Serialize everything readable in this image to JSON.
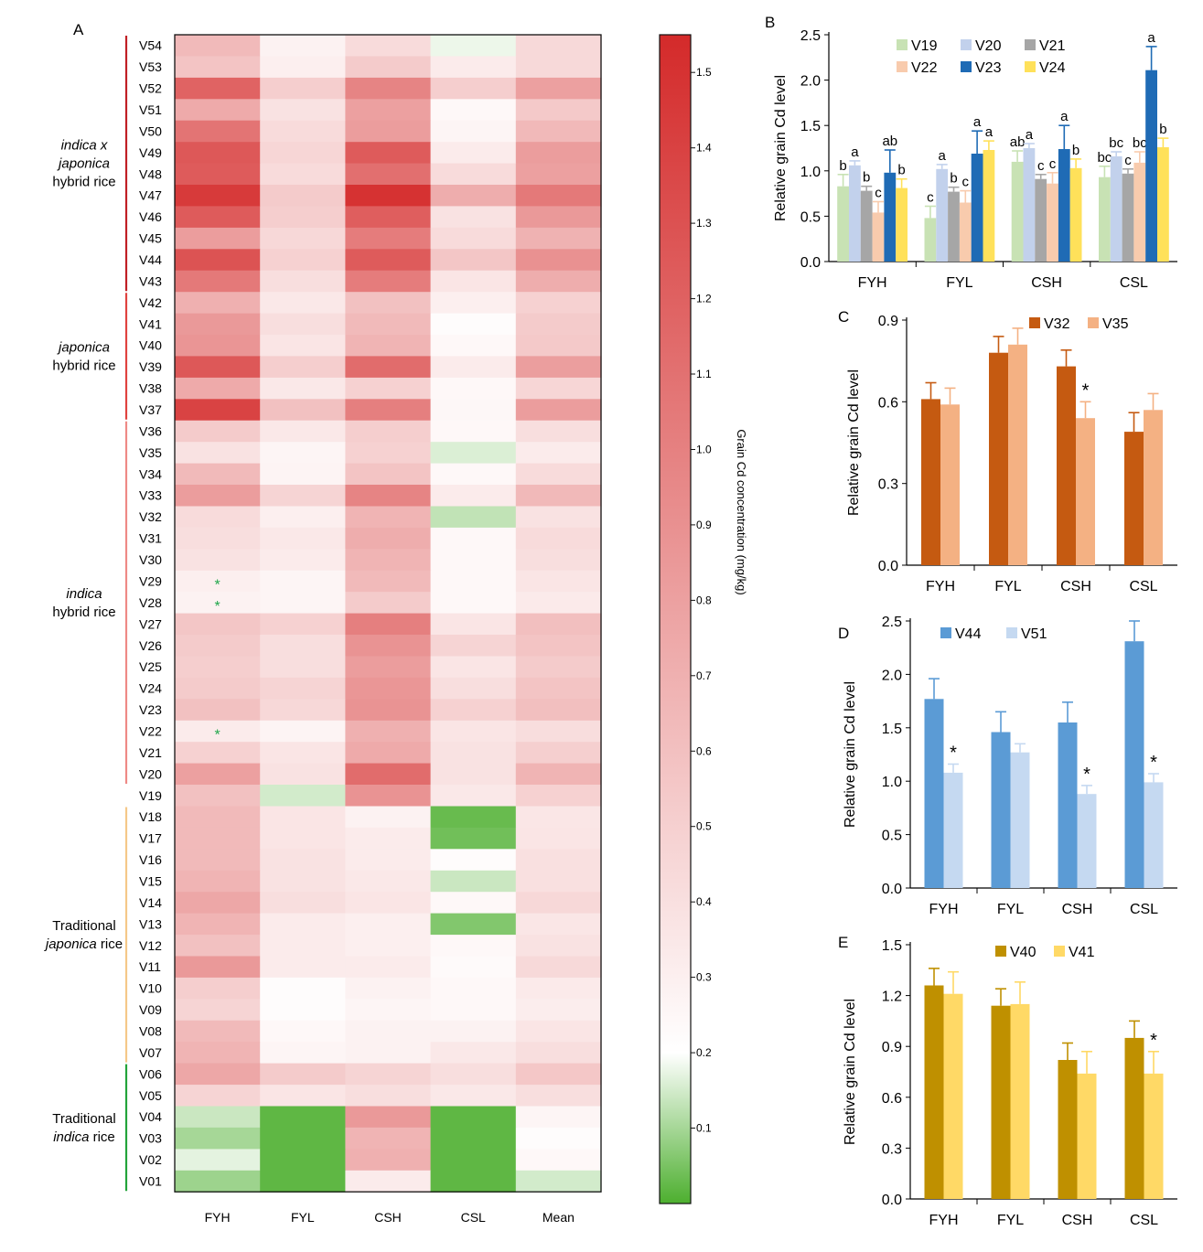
{
  "chart_data": [
    {
      "type": "heatmap",
      "panel_label": "A",
      "columns": [
        "FYH",
        "FYL",
        "CSH",
        "CSL",
        "Mean"
      ],
      "rows": [
        "V54",
        "V53",
        "V52",
        "V51",
        "V50",
        "V49",
        "V48",
        "V47",
        "V46",
        "V45",
        "V44",
        "V43",
        "V42",
        "V41",
        "V40",
        "V39",
        "V38",
        "V37",
        "V36",
        "V35",
        "V34",
        "V33",
        "V32",
        "V31",
        "V30",
        "V29",
        "V28",
        "V27",
        "V26",
        "V25",
        "V24",
        "V23",
        "V22",
        "V21",
        "V20",
        "V19",
        "V18",
        "V17",
        "V16",
        "V15",
        "V14",
        "V13",
        "V12",
        "V11",
        "V10",
        "V09",
        "V08",
        "V07",
        "V06",
        "V05",
        "V04",
        "V03",
        "V02",
        "V01"
      ],
      "values": [
        [
          0.62,
          0.28,
          0.42,
          0.18,
          0.43
        ],
        [
          0.56,
          0.3,
          0.52,
          0.32,
          0.43
        ],
        [
          1.15,
          0.5,
          0.95,
          0.5,
          0.78
        ],
        [
          0.72,
          0.38,
          0.78,
          0.24,
          0.53
        ],
        [
          1.05,
          0.42,
          0.8,
          0.26,
          0.63
        ],
        [
          1.22,
          0.45,
          1.2,
          0.32,
          0.8
        ],
        [
          1.2,
          0.42,
          1.08,
          0.42,
          0.78
        ],
        [
          1.4,
          0.52,
          1.45,
          0.7,
          1.02
        ],
        [
          1.2,
          0.5,
          1.18,
          0.38,
          0.82
        ],
        [
          0.8,
          0.44,
          1.0,
          0.42,
          0.67
        ],
        [
          1.25,
          0.48,
          1.2,
          0.55,
          0.87
        ],
        [
          1.02,
          0.4,
          1.0,
          0.36,
          0.7
        ],
        [
          0.68,
          0.34,
          0.58,
          0.3,
          0.48
        ],
        [
          0.82,
          0.4,
          0.62,
          0.22,
          0.52
        ],
        [
          0.85,
          0.36,
          0.66,
          0.24,
          0.53
        ],
        [
          1.22,
          0.5,
          1.1,
          0.32,
          0.79
        ],
        [
          0.72,
          0.34,
          0.48,
          0.24,
          0.45
        ],
        [
          1.35,
          0.58,
          0.98,
          0.25,
          0.8
        ],
        [
          0.52,
          0.34,
          0.5,
          0.24,
          0.4
        ],
        [
          0.38,
          0.26,
          0.48,
          0.16,
          0.32
        ],
        [
          0.62,
          0.27,
          0.56,
          0.24,
          0.42
        ],
        [
          0.8,
          0.46,
          0.95,
          0.32,
          0.63
        ],
        [
          0.42,
          0.3,
          0.66,
          0.13,
          0.38
        ],
        [
          0.4,
          0.34,
          0.7,
          0.24,
          0.42
        ],
        [
          0.38,
          0.32,
          0.66,
          0.24,
          0.4
        ],
        [
          0.3,
          0.26,
          0.62,
          0.24,
          0.36
        ],
        [
          0.28,
          0.26,
          0.52,
          0.24,
          0.33
        ],
        [
          0.55,
          0.48,
          0.98,
          0.36,
          0.59
        ],
        [
          0.52,
          0.4,
          0.86,
          0.46,
          0.56
        ],
        [
          0.5,
          0.4,
          0.8,
          0.36,
          0.52
        ],
        [
          0.52,
          0.46,
          0.84,
          0.4,
          0.56
        ],
        [
          0.58,
          0.44,
          0.86,
          0.48,
          0.59
        ],
        [
          0.32,
          0.27,
          0.68,
          0.36,
          0.41
        ],
        [
          0.48,
          0.36,
          0.72,
          0.38,
          0.49
        ],
        [
          0.78,
          0.38,
          1.1,
          0.38,
          0.66
        ],
        [
          0.58,
          0.15,
          0.86,
          0.34,
          0.48
        ],
        [
          0.62,
          0.36,
          0.28,
          0.03,
          0.35
        ],
        [
          0.62,
          0.36,
          0.32,
          0.04,
          0.36
        ],
        [
          0.62,
          0.38,
          0.32,
          0.22,
          0.39
        ],
        [
          0.66,
          0.38,
          0.34,
          0.14,
          0.39
        ],
        [
          0.74,
          0.4,
          0.36,
          0.24,
          0.44
        ],
        [
          0.66,
          0.32,
          0.3,
          0.06,
          0.35
        ],
        [
          0.58,
          0.32,
          0.3,
          0.24,
          0.38
        ],
        [
          0.82,
          0.32,
          0.32,
          0.23,
          0.43
        ],
        [
          0.5,
          0.22,
          0.28,
          0.24,
          0.33
        ],
        [
          0.46,
          0.22,
          0.26,
          0.24,
          0.31
        ],
        [
          0.62,
          0.24,
          0.28,
          0.28,
          0.36
        ],
        [
          0.66,
          0.26,
          0.28,
          0.34,
          0.4
        ],
        [
          0.74,
          0.52,
          0.46,
          0.4,
          0.54
        ],
        [
          0.46,
          0.36,
          0.4,
          0.34,
          0.4
        ],
        [
          0.14,
          0.02,
          0.82,
          0.02,
          0.26
        ],
        [
          0.1,
          0.02,
          0.66,
          0.02,
          0.22
        ],
        [
          0.17,
          0.02,
          0.68,
          0.02,
          0.24
        ],
        [
          0.09,
          0.02,
          0.32,
          0.02,
          0.15
        ]
      ],
      "colorbar": {
        "label": "Grain Cd concentration (mg/kg)",
        "ticks": [
          "0.1",
          "0.2",
          "0.3",
          "0.4",
          "0.5",
          "0.6",
          "0.7",
          "0.8",
          "0.9",
          "1.0",
          "1.1",
          "1.2",
          "1.3",
          "1.4",
          "1.5"
        ],
        "range": [
          0,
          1.55
        ]
      },
      "colors": {
        "low": "#4daf2f",
        "mid": "#ffffff",
        "high": "#d42a2a"
      },
      "groups": [
        {
          "label_lines": [
            "indica x",
            "japonica",
            "hybrid rice"
          ],
          "italic_lines": [
            true,
            true,
            false
          ],
          "first": "V54",
          "last": "V43",
          "color": "#c11f25"
        },
        {
          "label_lines": [
            "japonica",
            "hybrid rice"
          ],
          "italic_lines": [
            true,
            false
          ],
          "first": "V42",
          "last": "V37",
          "color": "#e0423f"
        },
        {
          "label_lines": [
            "indica",
            "hybrid rice"
          ],
          "italic_lines": [
            true,
            false
          ],
          "first": "V36",
          "last": "V20",
          "color": "#ee8a86"
        },
        {
          "label_lines": [
            "Traditional",
            "japonica rice"
          ],
          "italic_lines": [
            false,
            false
          ],
          "first": "V18",
          "last": "V07",
          "color": "#f5c889"
        },
        {
          "label_lines": [
            "Traditional",
            "indica rice"
          ],
          "italic_lines": [
            false,
            false
          ],
          "first": "V06",
          "last": "V01",
          "color": "#23a43a"
        }
      ],
      "group_label_italic_words": {
        "Traditional japonica rice": "japonica",
        "Traditional indica rice": "indica"
      },
      "asterisks": [
        {
          "row": "V29",
          "column": "FYH",
          "text": "*"
        },
        {
          "row": "V28",
          "column": "FYH",
          "text": "*"
        },
        {
          "row": "V22",
          "column": "FYH",
          "text": "*"
        }
      ],
      "asterisk_color": "#1fa64a"
    },
    {
      "type": "bar",
      "panel_label": "B",
      "ylabel": "Relative grain Cd level",
      "ylim": [
        0,
        2.5
      ],
      "yticks": [
        "0.0",
        "0.5",
        "1.0",
        "1.5",
        "2.0",
        "2.5"
      ],
      "categories": [
        "FYH",
        "FYL",
        "CSH",
        "CSL"
      ],
      "series": [
        {
          "name": "V19",
          "color": "#c8e2b4",
          "values": [
            0.83,
            0.48,
            1.1,
            0.93
          ],
          "errors": [
            0.13,
            0.13,
            0.12,
            0.12
          ],
          "letters": [
            "b",
            "c",
            "ab",
            "bc"
          ]
        },
        {
          "name": "V20",
          "color": "#c2d1ec",
          "values": [
            1.06,
            1.02,
            1.25,
            1.16
          ],
          "errors": [
            0.05,
            0.05,
            0.05,
            0.05
          ],
          "letters": [
            "a",
            "a",
            "a",
            "bc"
          ]
        },
        {
          "name": "V21",
          "color": "#a6a6a6",
          "values": [
            0.78,
            0.77,
            0.91,
            0.97
          ],
          "errors": [
            0.05,
            0.05,
            0.05,
            0.05
          ],
          "letters": [
            "b",
            "b",
            "c",
            "c"
          ]
        },
        {
          "name": "V22",
          "color": "#f8cbad",
          "values": [
            0.54,
            0.65,
            0.86,
            1.09
          ],
          "errors": [
            0.12,
            0.13,
            0.12,
            0.12
          ],
          "letters": [
            "c",
            "c",
            "c",
            "bc"
          ]
        },
        {
          "name": "V23",
          "color": "#1f6bb5",
          "values": [
            0.98,
            1.19,
            1.24,
            2.11
          ],
          "errors": [
            0.25,
            0.25,
            0.26,
            0.26
          ],
          "letters": [
            "ab",
            "a",
            "a",
            "a"
          ]
        },
        {
          "name": "V24",
          "color": "#ffe15a",
          "values": [
            0.81,
            1.23,
            1.03,
            1.26
          ],
          "errors": [
            0.1,
            0.1,
            0.1,
            0.1
          ],
          "letters": [
            "b",
            "a",
            "b",
            "b"
          ]
        }
      ]
    },
    {
      "type": "bar",
      "panel_label": "C",
      "ylabel": "Relative grain Cd level",
      "ylim": [
        0,
        0.9
      ],
      "yticks": [
        "0.0",
        "0.3",
        "0.6",
        "0.9"
      ],
      "categories": [
        "FYH",
        "FYL",
        "CSH",
        "CSL"
      ],
      "series": [
        {
          "name": "V32",
          "color": "#c55a11",
          "values": [
            0.61,
            0.78,
            0.73,
            0.49
          ],
          "errors": [
            0.06,
            0.06,
            0.06,
            0.07
          ]
        },
        {
          "name": "V35",
          "color": "#f4b183",
          "values": [
            0.59,
            0.81,
            0.54,
            0.57
          ],
          "errors": [
            0.06,
            0.06,
            0.06,
            0.06
          ]
        }
      ],
      "significance": [
        {
          "category": "CSH",
          "text": "*"
        }
      ]
    },
    {
      "type": "bar",
      "panel_label": "D",
      "ylabel": "Relative grain Cd level",
      "ylim": [
        0,
        2.5
      ],
      "yticks": [
        "0.0",
        "0.5",
        "1.0",
        "1.5",
        "2.0",
        "2.5"
      ],
      "categories": [
        "FYH",
        "FYL",
        "CSH",
        "CSL"
      ],
      "series": [
        {
          "name": "V44",
          "color": "#5b9bd5",
          "values": [
            1.77,
            1.46,
            1.55,
            2.31
          ],
          "errors": [
            0.19,
            0.19,
            0.19,
            0.19
          ]
        },
        {
          "name": "V51",
          "color": "#c5d9f1",
          "values": [
            1.08,
            1.27,
            0.88,
            0.99
          ],
          "errors": [
            0.08,
            0.08,
            0.08,
            0.08
          ]
        }
      ],
      "significance": [
        {
          "category": "FYH",
          "text": "*"
        },
        {
          "category": "CSH",
          "text": "*"
        },
        {
          "category": "CSL",
          "text": "*"
        }
      ]
    },
    {
      "type": "bar",
      "panel_label": "E",
      "ylabel": "Relative grain Cd level",
      "ylim": [
        0,
        1.5
      ],
      "yticks": [
        "0.0",
        "0.3",
        "0.6",
        "0.9",
        "1.2",
        "1.5"
      ],
      "categories": [
        "FYH",
        "FYL",
        "CSH",
        "CSL"
      ],
      "series": [
        {
          "name": "V40",
          "color": "#bf9000",
          "values": [
            1.26,
            1.14,
            0.82,
            0.95
          ],
          "errors": [
            0.1,
            0.1,
            0.1,
            0.1
          ]
        },
        {
          "name": "V41",
          "color": "#ffd966",
          "values": [
            1.21,
            1.15,
            0.74,
            0.74
          ],
          "errors": [
            0.13,
            0.13,
            0.13,
            0.13
          ]
        }
      ],
      "significance": [
        {
          "category": "CSL",
          "text": "*"
        }
      ]
    }
  ]
}
